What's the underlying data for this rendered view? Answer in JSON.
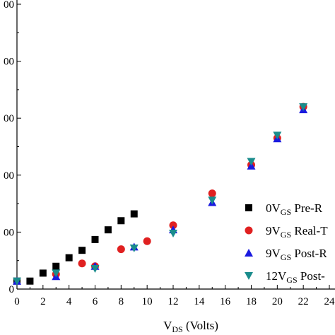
{
  "chart_data": {
    "type": "scatter",
    "xlabel_main": "V",
    "xlabel_sub": "DS",
    "xlabel_rest": " (Volts)",
    "xlim": [
      0,
      24
    ],
    "x_ticks": [
      0,
      2,
      4,
      6,
      8,
      10,
      12,
      14,
      16,
      18,
      20,
      22,
      24
    ],
    "ylim": [
      0,
      500
    ],
    "y_ticks_visible": [
      "0",
      "00",
      "00",
      "00",
      "00",
      "00"
    ],
    "series": [
      {
        "legend_main": "0V",
        "legend_sub": "GS",
        "legend_rest": " Pre-R",
        "marker": "square",
        "color": "#000000",
        "x": [
          0,
          1,
          2,
          3,
          4,
          5,
          6,
          7,
          8,
          9
        ],
        "y": [
          14,
          14,
          28,
          40,
          55,
          68,
          87,
          104,
          120,
          132
        ]
      },
      {
        "legend_main": "9V",
        "legend_sub": "GS",
        "legend_rest": " Real-T",
        "marker": "circle",
        "color": "#e02020",
        "x": [
          3,
          5,
          6,
          8,
          10,
          12,
          15,
          18,
          20,
          22
        ],
        "y": [
          26,
          45,
          40,
          70,
          84,
          112,
          168,
          218,
          265,
          320
        ]
      },
      {
        "legend_main": "9V",
        "legend_sub": "GS",
        "legend_rest": " Post-R",
        "marker": "triangle-up",
        "color": "#1a1adf",
        "x": [
          0,
          3,
          6,
          9,
          12,
          15,
          18,
          20,
          22
        ],
        "y": [
          14,
          22,
          40,
          74,
          104,
          152,
          216,
          264,
          315
        ]
      },
      {
        "legend_main": "12V",
        "legend_sub": "GS",
        "legend_rest": " Post-",
        "marker": "triangle-down",
        "color": "#1a8c8c",
        "x": [
          0,
          3,
          6,
          9,
          12,
          15,
          18,
          20,
          22
        ],
        "y": [
          14,
          28,
          36,
          72,
          98,
          156,
          224,
          270,
          320
        ]
      }
    ]
  }
}
